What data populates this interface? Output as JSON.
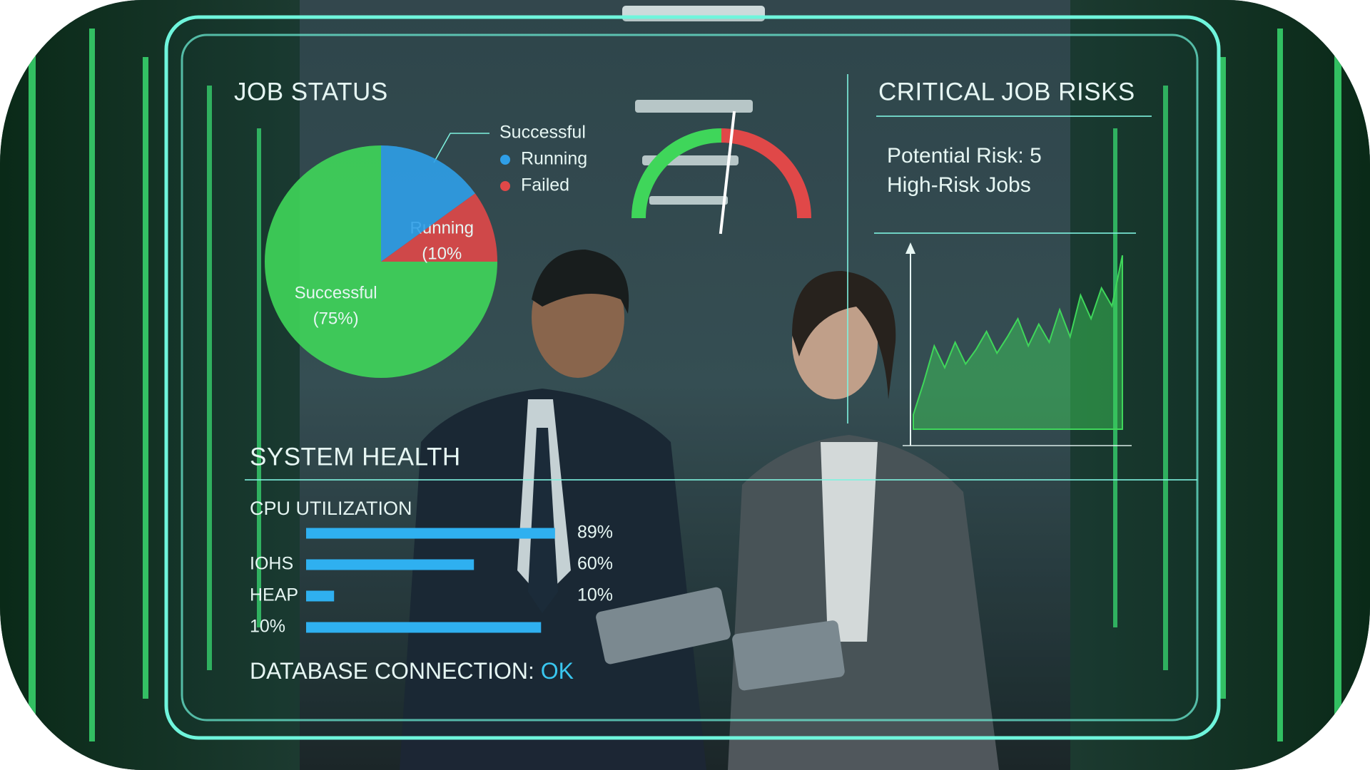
{
  "job_status": {
    "title": "JOB STATUS"
  },
  "critical_risks": {
    "title": "CRITICAL JOB RISKS",
    "lines": [
      "Potential Risk: 5",
      "High-Risk Jobs"
    ]
  },
  "system_health": {
    "title": "SYSTEM HEALTH",
    "subtitle": "CPU UTILIZATION",
    "database": {
      "label": "DATABASE CONNECTION:",
      "status": "OK"
    }
  },
  "chart_data": [
    {
      "type": "pie",
      "categories": [
        "Successful",
        "Running",
        null
      ],
      "values": [
        75,
        10,
        15
      ],
      "value_labels": [
        "(75%)",
        "(10%",
        null
      ],
      "colors": [
        "#3fd65a",
        "#e04848",
        "#2f9fe8"
      ],
      "legend": [
        {
          "name": "Successful"
        },
        {
          "name": "Running",
          "color": "#2f9fe8"
        },
        {
          "name": "Failed",
          "color": "#e04848"
        }
      ]
    },
    {
      "type": "gauge",
      "value": 50,
      "ylim": [
        0,
        100
      ],
      "colors": [
        "#3fd65a",
        "#e04848"
      ]
    },
    {
      "type": "bar",
      "orientation": "horizontal",
      "categories": [
        null,
        "IOHS",
        "HEAP",
        "10%"
      ],
      "values": [
        89,
        60,
        10,
        84
      ],
      "value_labels": [
        "89%",
        "60%",
        "10%",
        null
      ],
      "color": "#2fb0f0",
      "xlim": [
        0,
        100
      ]
    },
    {
      "type": "area",
      "values": [
        8,
        26,
        46,
        34,
        48,
        36,
        44,
        54,
        42,
        51,
        61,
        46,
        58,
        48,
        66,
        51,
        74,
        61,
        78,
        68,
        96
      ],
      "ylim": [
        0,
        100
      ],
      "color": "#3fd65a"
    }
  ]
}
